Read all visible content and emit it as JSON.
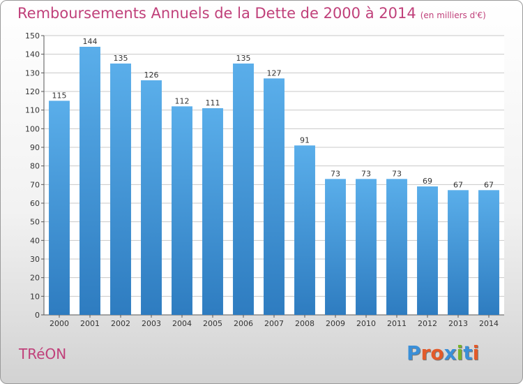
{
  "header": {
    "title": "Remboursements Annuels de la Dette de 2000 à 2014",
    "subtitle": "(en milliers d'€)"
  },
  "footer": {
    "commune": "TRéON",
    "logo_text": "Proxiti",
    "logo_colors": [
      "#3a8fd8",
      "#e35a2a",
      "#e35a2a",
      "#3a8fd8",
      "#7ab32c",
      "#3a8fd8",
      "#e35a2a"
    ]
  },
  "colors": {
    "bar_top": "#5aaeea",
    "bar_bottom": "#2e7cc0",
    "accent": "#c0407a",
    "grid": "#c8c8c8"
  },
  "chart_data": {
    "type": "bar",
    "title": "Remboursements Annuels de la Dette de 2000 à 2014",
    "subtitle": "(en milliers d'€)",
    "categories": [
      "2000",
      "2001",
      "2002",
      "2003",
      "2004",
      "2005",
      "2006",
      "2007",
      "2008",
      "2009",
      "2010",
      "2011",
      "2012",
      "2013",
      "2014"
    ],
    "values": [
      115,
      144,
      135,
      126,
      112,
      111,
      135,
      127,
      91,
      73,
      73,
      73,
      69,
      67,
      67
    ],
    "ylim": [
      0,
      150
    ],
    "yticks": [
      0,
      10,
      20,
      30,
      40,
      50,
      60,
      70,
      80,
      90,
      100,
      110,
      120,
      130,
      140,
      150
    ],
    "grid": true
  }
}
